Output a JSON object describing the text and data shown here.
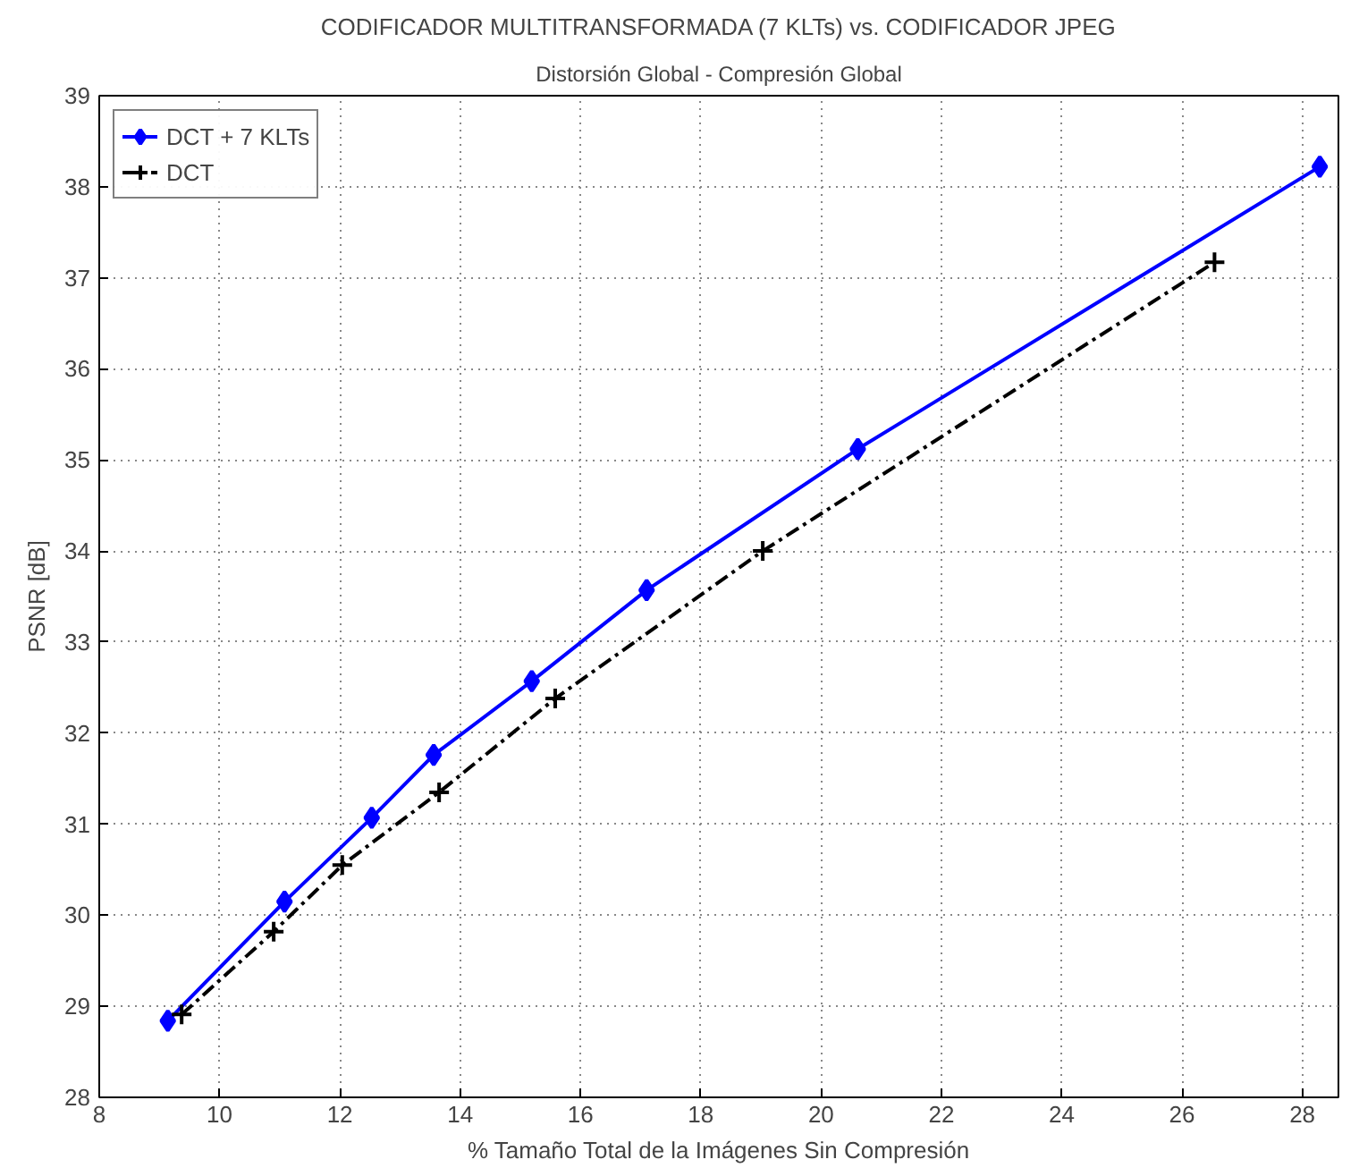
{
  "chart_data": {
    "type": "line",
    "title": "CODIFICADOR MULTITRANSFORMADA (7 KLTs) vs. CODIFICADOR JPEG",
    "subtitle": "Distorsión Global - Compresión Global",
    "xlabel": "% Tamaño Total de la Imágenes Sin Compresión",
    "ylabel": "PSNR [dB]",
    "xlim": [
      8,
      28.6
    ],
    "ylim": [
      28,
      39
    ],
    "xticks": [
      8,
      10,
      12,
      14,
      16,
      18,
      20,
      22,
      24,
      26,
      28
    ],
    "yticks": [
      28,
      29,
      30,
      31,
      32,
      33,
      34,
      35,
      36,
      37,
      38,
      39
    ],
    "grid": true,
    "legend": "top left",
    "series": [
      {
        "name": "DCT + 7 KLTs",
        "color": "#0000ff",
        "marker": "diamond",
        "line_style": "solid",
        "x": [
          9.14,
          11.08,
          12.53,
          13.56,
          15.19,
          17.1,
          20.61,
          28.29
        ],
        "values": [
          28.84,
          30.15,
          31.07,
          31.76,
          32.57,
          33.57,
          35.12,
          38.22
        ]
      },
      {
        "name": "DCT",
        "color": "#000000",
        "marker": "cross",
        "line_style": "dashdot",
        "x": [
          9.37,
          10.9,
          12.04,
          13.65,
          15.58,
          19.03,
          26.54
        ],
        "values": [
          28.91,
          29.82,
          30.55,
          31.35,
          32.38,
          34.0,
          37.17
        ]
      }
    ]
  }
}
